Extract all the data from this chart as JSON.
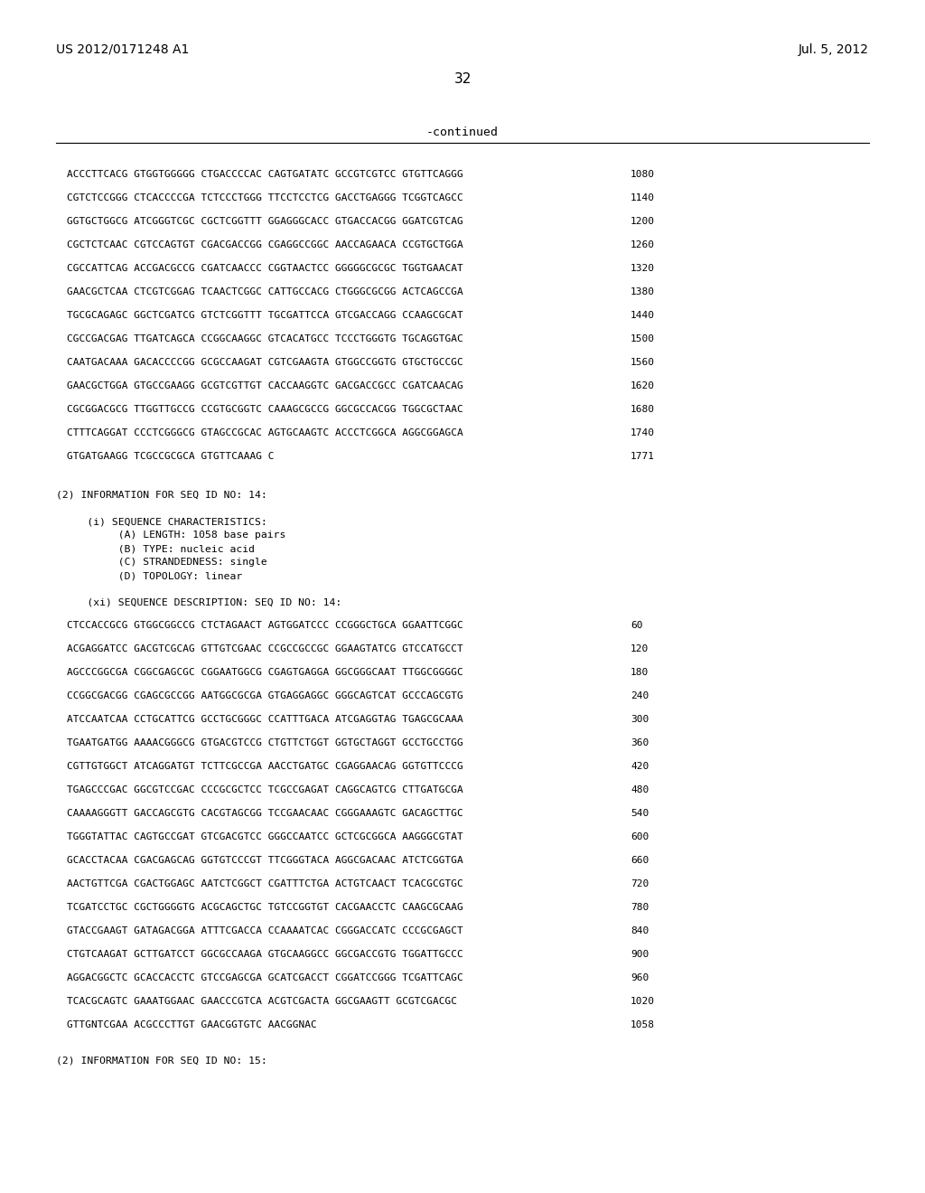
{
  "page_header_left": "US 2012/0171248 A1",
  "page_header_right": "Jul. 5, 2012",
  "page_number": "32",
  "continued_label": "-continued",
  "background_color": "#ffffff",
  "text_color": "#000000",
  "sequence_lines_top": [
    [
      "ACCCTTCACG GTGGTGGGGG CTGACCCCAC CAGTGATATC GCCGTCGTCC GTGTTCAGGG",
      "1080"
    ],
    [
      "CGTCTCCGGG CTCACCCCGA TCTCCCTGGG TTCCTCCTCG GACCTGAGGG TCGGTCAGCC",
      "1140"
    ],
    [
      "GGTGCTGGCG ATCGGGTCGC CGCTCGGTTT GGAGGGCACC GTGACCACGG GGATCGTCAG",
      "1200"
    ],
    [
      "CGCTCTCAAC CGTCCAGTGT CGACGACCGG CGAGGCCGGC AACCAGAACA CCGTGCTGGA",
      "1260"
    ],
    [
      "CGCCATTCAG ACCGACGCCG CGATCAACCC CGGTAACTCC GGGGGCGCGC TGGTGAACAT",
      "1320"
    ],
    [
      "GAACGCTCAA CTCGTCGGAG TCAACTCGGC CATTGCCACG CTGGGCGCGG ACTCAGCCGA",
      "1380"
    ],
    [
      "TGCGCAGAGC GGCTCGATCG GTCTCGGTTT TGCGATTCCA GTCGACCAGG CCAAGCGCAT",
      "1440"
    ],
    [
      "CGCCGACGAG TTGATCAGCA CCGGCAAGGC GTCACATGCC TCCCTGGGTG TGCAGGTGAC",
      "1500"
    ],
    [
      "CAATGACAAA GACACCCCGG GCGCCAAGAT CGTCGAAGTA GTGGCCGGTG GTGCTGCCGC",
      "1560"
    ],
    [
      "GAACGCTGGA GTGCCGAAGG GCGTCGTTGT CACCAAGGTC GACGACCGCC CGATCAACAG",
      "1620"
    ],
    [
      "CGCGGACGCG TTGGTTGCCG CCGTGCGGTC CAAAGCGCCG GGCGCCACGG TGGCGCTAAC",
      "1680"
    ],
    [
      "CTTTCAGGAT CCCTCGGGCG GTAGCCGCAC AGTGCAAGTC ACCCTCGGCA AGGCGGAGCA",
      "1740"
    ],
    [
      "GTGATGAAGG TCGCCGCGCA GTGTTCAAAG C",
      "1771"
    ]
  ],
  "info_block": [
    "(2) INFORMATION FOR SEQ ID NO: 14:",
    "",
    "     (i) SEQUENCE CHARACTERISTICS:",
    "          (A) LENGTH: 1058 base pairs",
    "          (B) TYPE: nucleic acid",
    "          (C) STRANDEDNESS: single",
    "          (D) TOPOLOGY: linear",
    "",
    "     (xi) SEQUENCE DESCRIPTION: SEQ ID NO: 14:"
  ],
  "sequence_lines_bottom": [
    [
      "CTCCACCGCG GTGGCGGCCG CTCTAGAACT AGTGGATCCC CCGGGCTGCA GGAATTCGGC",
      "60"
    ],
    [
      "ACGAGGATCC GACGTCGCAG GTTGTCGAAC CCGCCGCCGC GGAAGTATCG GTCCATGCCT",
      "120"
    ],
    [
      "AGCCCGGCGA CGGCGAGCGC CGGAATGGCG CGAGTGAGGA GGCGGGCAAT TTGGCGGGGC",
      "180"
    ],
    [
      "CCGGCGACGG CGAGCGCCGG AATGGCGCGA GTGAGGAGGC GGGCAGTCAT GCCCAGCGTG",
      "240"
    ],
    [
      "ATCCAATCAA CCTGCATTCG GCCTGCGGGC CCATTTGACA ATCGAGGTAG TGAGCGCAAA",
      "300"
    ],
    [
      "TGAATGATGG AAAACGGGCG GTGACGTCCG CTGTTCTGGT GGTGCTAGGT GCCTGCCTGG",
      "360"
    ],
    [
      "CGTTGTGGCT ATCAGGATGT TCTTCGCCGA AACCTGATGC CGAGGAACAG GGTGTTCCCG",
      "420"
    ],
    [
      "TGAGCCCGAC GGCGTCCGAC CCCGCGCTCC TCGCCGAGAT CAGGCAGTCG CTTGATGCGA",
      "480"
    ],
    [
      "CAAAAGGGTT GACCAGCGTG CACGTAGCGG TCCGAACAAC CGGGAAAGTC GACAGCTTGC",
      "540"
    ],
    [
      "TGGGTATTAC CAGTGCCGAT GTCGACGTCC GGGCCAATCC GCTCGCGGCA AAGGGCGTAT",
      "600"
    ],
    [
      "GCACCTACAA CGACGAGCAG GGTGTCCCGT TTCGGGTACA AGGCGACAAC ATCTCGGTGA",
      "660"
    ],
    [
      "AACTGTTCGA CGACTGGAGC AATCTCGGCT CGATTTCTGA ACTGTCAACT TCACGCGTGC",
      "720"
    ],
    [
      "TCGATCCTGC CGCTGGGGTG ACGCAGCTGC TGTCCGGTGT CACGAACCTC CAAGCGCAAG",
      "780"
    ],
    [
      "GTACCGAAGT GATAGACGGA ATTTCGACCA CCAAAATCAC CGGGACCATC CCCGCGAGCT",
      "840"
    ],
    [
      "CTGTCAAGAT GCTTGATCCT GGCGCCAAGA GTGCAAGGCC GGCGACCGTG TGGATTGCCC",
      "900"
    ],
    [
      "AGGACGGCTC GCACCACCTC GTCCGAGCGA GCATCGACCT CGGATCCGGG TCGATTCAGC",
      "960"
    ],
    [
      "TCACGCAGTC GAAATGGAAC GAACCCGTCA ACGTCGACTA GGCGAAGTT GCGTCGACGC",
      "1020"
    ],
    [
      "GTTGNTCGAA ACGCCCTTGT GAACGGTGTC AACGGNAC",
      "1058"
    ]
  ],
  "footer_line": "(2) INFORMATION FOR SEQ ID NO: 15:"
}
